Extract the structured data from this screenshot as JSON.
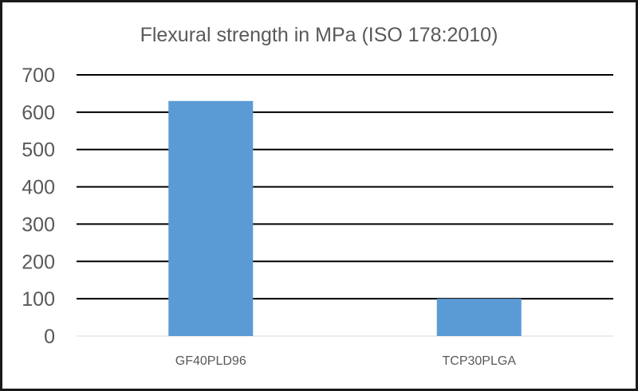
{
  "chart_data": {
    "type": "bar",
    "title": "Flexural strength in MPa (ISO 178:2010)",
    "xlabel": "",
    "ylabel": "",
    "categories": [
      "GF40PLD96",
      "TCP30PLGA"
    ],
    "values": [
      630,
      100
    ],
    "ylim": [
      0,
      700
    ],
    "yticks": [
      "0",
      "100",
      "200",
      "300",
      "400",
      "500",
      "600",
      "700"
    ],
    "grid": true,
    "legend": "none",
    "colors": {
      "bar": "#5b9bd5",
      "gridline": "#000000",
      "text": "#595959",
      "frame": "#1a1a1a"
    }
  }
}
